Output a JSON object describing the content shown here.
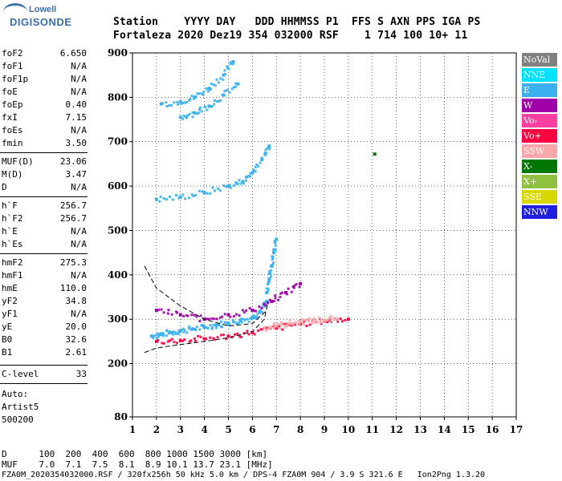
{
  "logo": {
    "line1": "Lowell",
    "line2": "DIGISONDE"
  },
  "header": {
    "line1": "Station    YYYY DAY   DDD HHMMSS P1  FFS S AXN PPS IGA PS",
    "line2": "Fortaleza 2020 Dez19 354 032000 RSF    1 714 100 10+ 11"
  },
  "params": [
    {
      "label": "foF2",
      "value": "6.650"
    },
    {
      "label": "foF1",
      "value": "N/A"
    },
    {
      "label": "foF1p",
      "value": "N/A"
    },
    {
      "label": "foE",
      "value": "N/A"
    },
    {
      "label": "foEp",
      "value": "0.40"
    },
    {
      "label": "fxI",
      "value": "7.15"
    },
    {
      "label": "foEs",
      "value": "N/A"
    },
    {
      "label": "fmin",
      "value": "3.50"
    },
    {
      "label": "MUF(D)",
      "value": "23.06"
    },
    {
      "label": "M(D)",
      "value": "3.47"
    },
    {
      "label": "D",
      "value": "N/A"
    },
    {
      "label": "h`F",
      "value": "256.7"
    },
    {
      "label": "h`F2",
      "value": "256.7"
    },
    {
      "label": "h`E",
      "value": "N/A"
    },
    {
      "label": "h`Es",
      "value": "N/A"
    },
    {
      "label": "hmF2",
      "value": "275.3"
    },
    {
      "label": "hmF1",
      "value": "N/A"
    },
    {
      "label": "hmE",
      "value": "110.0"
    },
    {
      "label": "yF2",
      "value": "34.8"
    },
    {
      "label": "yF1",
      "value": "N/A"
    },
    {
      "label": "yE",
      "value": "20.0"
    },
    {
      "label": "B0",
      "value": "32.6"
    },
    {
      "label": "B1",
      "value": "2.61"
    },
    {
      "label": "C-level",
      "value": "33"
    }
  ],
  "auto": {
    "line1": "Auto:",
    "line2": "Artist5",
    "line3": "500200"
  },
  "legend": [
    {
      "label": "NoVal",
      "color": "#808080"
    },
    {
      "label": "NNE",
      "color": "#00e0ff"
    },
    {
      "label": "E",
      "color": "#3ab0f0"
    },
    {
      "label": "W",
      "color": "#a000a8"
    },
    {
      "label": "Vo-",
      "color": "#ff40a0"
    },
    {
      "label": "Vo+",
      "color": "#ff0040"
    },
    {
      "label": "SSW",
      "color": "#f8a8a8"
    },
    {
      "label": "X-",
      "color": "#007800"
    },
    {
      "label": "X+",
      "color": "#90c040"
    },
    {
      "label": "SSE",
      "color": "#d8d800"
    },
    {
      "label": "NNW",
      "color": "#2020e0"
    }
  ],
  "footer": {
    "d_line": "D      100  200  400  600  800 1000 1500 3000 [km]",
    "muf_line": "MUF    7.0  7.1  7.5  8.1  8.9 10.1 13.7 23.1 [MHz]",
    "info_line": "FZA0M_2020354032000.RSF / 320fx256h 50 kHz 5.0 km / DPS-4 FZA0M 904 / 3.9 S 321.6 E   Ion2Png 1.3.20"
  },
  "chart_data": {
    "type": "scatter",
    "x_ticks": [
      "1",
      "2",
      "3",
      "4",
      "5",
      "6",
      "7",
      "8",
      "9",
      "10",
      "11",
      "12",
      "13",
      "14",
      "15",
      "16",
      "17"
    ],
    "y_ticks": [
      "80",
      "200",
      "300",
      "400",
      "500",
      "600",
      "700",
      "800",
      "900"
    ],
    "xlim": [
      1,
      17
    ],
    "ylim": [
      80,
      900
    ],
    "grid": true,
    "legend_position": "right",
    "traces": [
      {
        "name": "E",
        "x": [
          1.8,
          2.2,
          2.6,
          3.0,
          3.5,
          4.0,
          4.5,
          5.0,
          5.5,
          6.0,
          6.3,
          6.6
        ],
        "y": [
          262,
          266,
          270,
          274,
          278,
          282,
          287,
          291,
          296,
          304,
          316,
          340
        ]
      },
      {
        "name": "E",
        "x": [
          6.6,
          6.7,
          6.8,
          6.9,
          7.0
        ],
        "y": [
          360,
          390,
          420,
          450,
          480
        ]
      },
      {
        "name": "E",
        "x": [
          2.0,
          3.0,
          4.0,
          5.0,
          5.6,
          6.0,
          6.4,
          6.7
        ],
        "y": [
          570,
          575,
          585,
          600,
          610,
          630,
          660,
          690
        ]
      },
      {
        "name": "E",
        "x": [
          2.2,
          3.0,
          3.6,
          4.2,
          4.8,
          5.2
        ],
        "y": [
          785,
          790,
          800,
          820,
          850,
          880
        ]
      },
      {
        "name": "E",
        "x": [
          3.0,
          3.6,
          4.2,
          4.8,
          5.4
        ],
        "y": [
          755,
          765,
          780,
          805,
          830
        ]
      },
      {
        "name": "W",
        "x": [
          2.0,
          3.0,
          4.0,
          5.0,
          6.0,
          6.8,
          7.4,
          8.0
        ],
        "y": [
          320,
          310,
          300,
          310,
          320,
          340,
          360,
          380
        ]
      },
      {
        "name": "Vo+",
        "x": [
          2.0,
          3.0,
          4.0,
          5.0,
          6.0,
          7.0,
          8.0,
          9.0,
          10.0
        ],
        "y": [
          250,
          252,
          256,
          262,
          270,
          280,
          290,
          296,
          300
        ]
      },
      {
        "name": "SSW",
        "x": [
          6.5,
          7.0,
          7.5,
          8.0,
          8.5,
          9.0,
          9.5
        ],
        "y": [
          280,
          285,
          290,
          295,
          296,
          298,
          300
        ]
      },
      {
        "name": "X-",
        "x": [
          11.1
        ],
        "y": [
          672
        ]
      }
    ],
    "model_curves": [
      {
        "x": [
          1.5,
          2.0,
          3.0,
          4.0,
          5.0,
          6.0,
          6.5,
          6.65
        ],
        "y": [
          225,
          235,
          243,
          250,
          258,
          272,
          300,
          340
        ]
      },
      {
        "x": [
          1.5,
          2.0,
          3.0,
          4.0,
          5.0,
          6.0,
          6.6
        ],
        "y": [
          420,
          370,
          330,
          300,
          285,
          290,
          320
        ]
      }
    ]
  }
}
